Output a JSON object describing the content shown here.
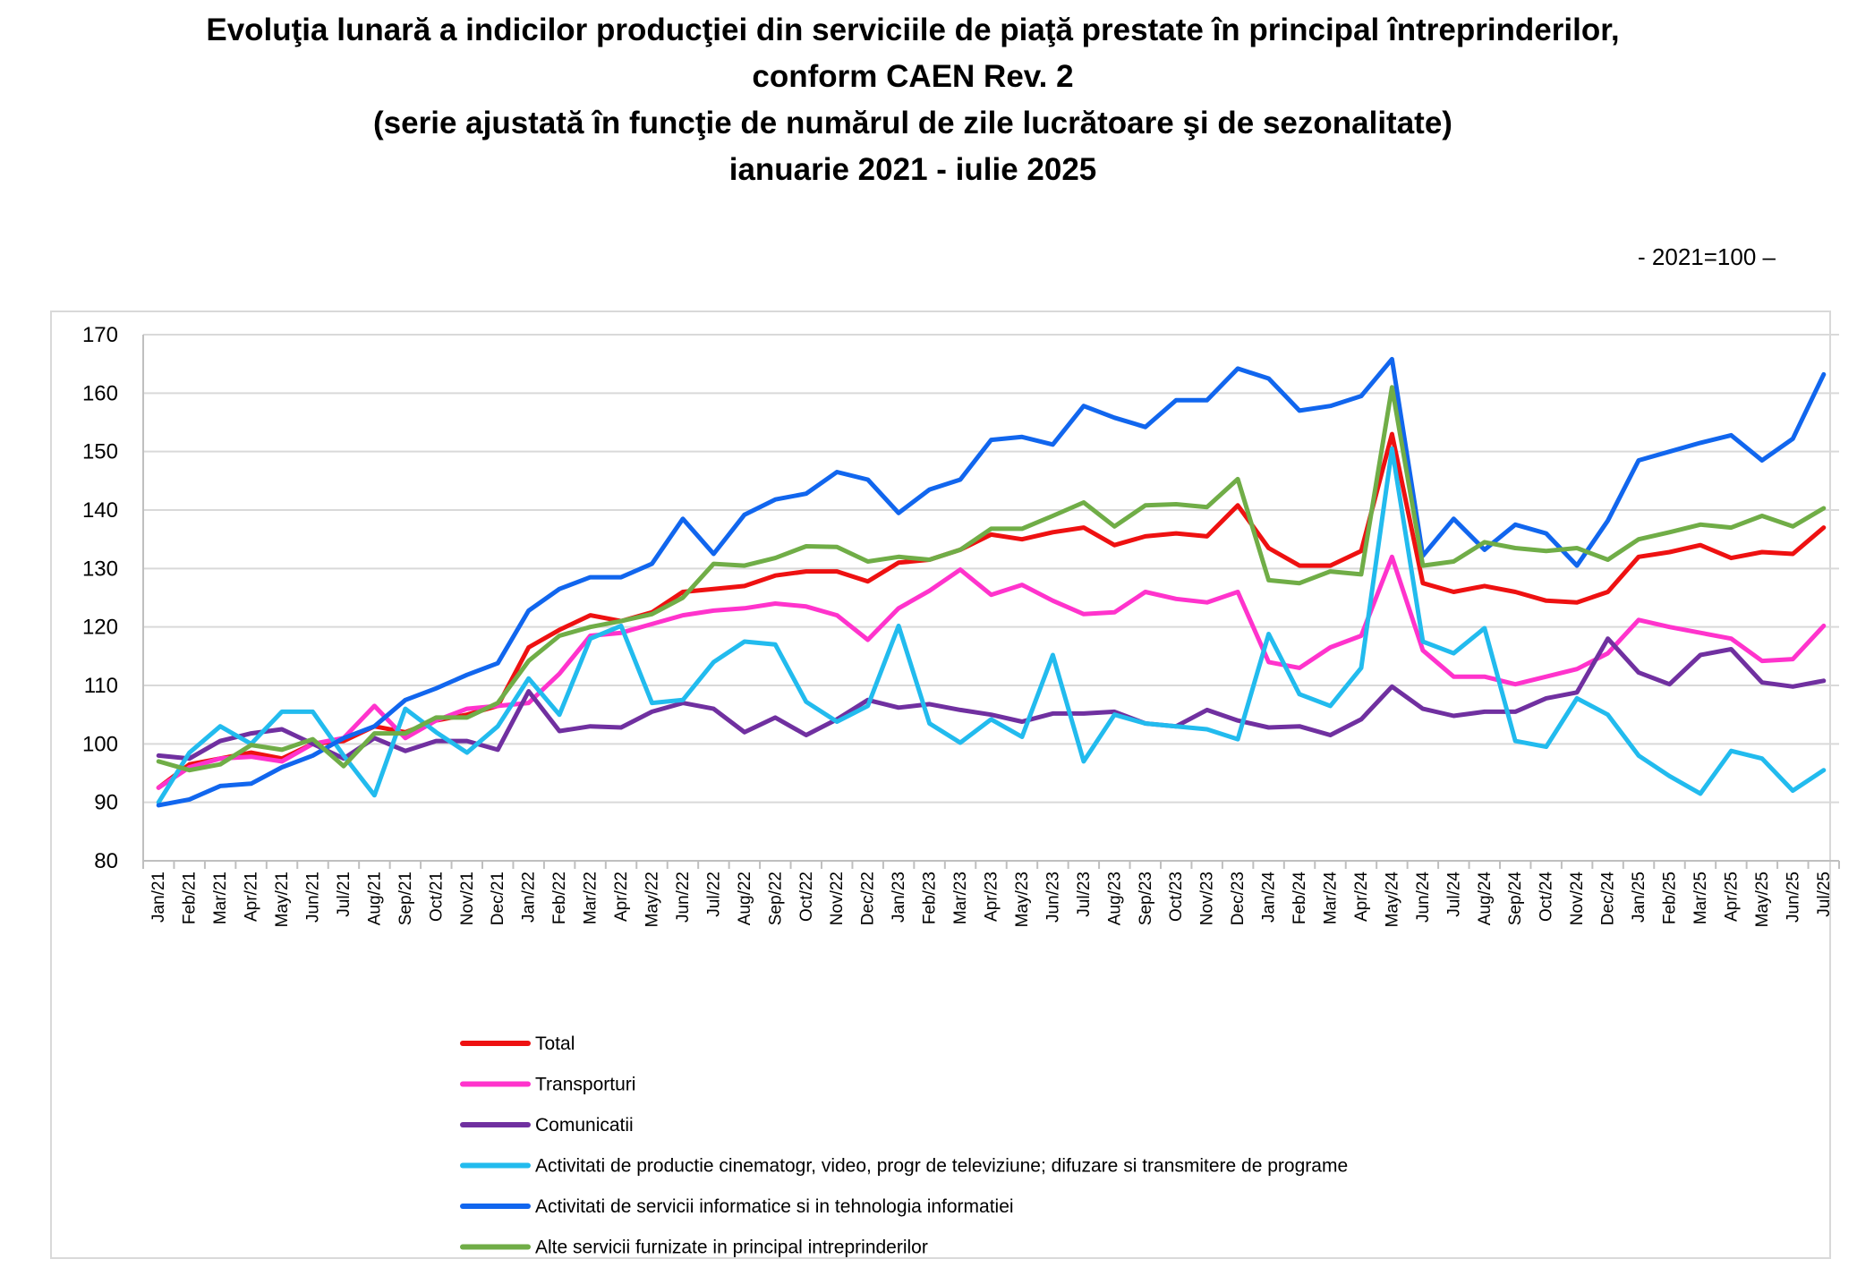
{
  "title_lines": [
    "Evoluţia lunară a indicilor producţiei din serviciile de piaţă prestate în principal întreprinderilor,",
    "conform CAEN Rev. 2",
    "(serie ajustată în funcţie de numărul de zile lucrătoare şi de sezonalitate)",
    "ianuarie 2021 - iulie 2025"
  ],
  "base_note": "- 2021=100 –",
  "chart_data": {
    "type": "line",
    "ylim": [
      80,
      170
    ],
    "yticks": [
      80,
      90,
      100,
      110,
      120,
      130,
      140,
      150,
      160,
      170
    ],
    "grid": true,
    "legend_position": "bottom",
    "categories": [
      "Jan/21",
      "Feb/21",
      "Mar/21",
      "Apr/21",
      "May/21",
      "Jun/21",
      "Jul/21",
      "Aug/21",
      "Sep/21",
      "Oct/21",
      "Nov/21",
      "Dec/21",
      "Jan/22",
      "Feb/22",
      "Mar/22",
      "Apr/22",
      "May/22",
      "Jun/22",
      "Jul/22",
      "Aug/22",
      "Sep/22",
      "Oct/22",
      "Nov/22",
      "Dec/22",
      "Jan/23",
      "Feb/23",
      "Mar/23",
      "Apr/23",
      "May/23",
      "Jun/23",
      "Jul/23",
      "Aug/23",
      "Sep/23",
      "Oct/23",
      "Nov/23",
      "Dec/23",
      "Jan/24",
      "Feb/24",
      "Mar/24",
      "Apr/24",
      "May/24",
      "Jun/24",
      "Jul/24",
      "Aug/24",
      "Sep/24",
      "Oct/24",
      "Nov/24",
      "Dec/24",
      "Jan/25",
      "Feb/25",
      "Mar/25",
      "Apr/25",
      "May/25",
      "Jun/25",
      "Jul/25"
    ],
    "series": [
      {
        "name": "Total",
        "color": "#ee1111",
        "values": [
          92.5,
          96.5,
          97.5,
          98.5,
          97.5,
          100,
          100.5,
          103,
          102,
          104,
          105,
          106.5,
          116.5,
          119.5,
          122,
          121,
          122.5,
          126,
          126.5,
          127,
          128.8,
          129.5,
          129.5,
          127.8,
          131,
          131.5,
          133.2,
          135.8,
          135,
          136.2,
          137,
          134,
          135.5,
          136,
          135.5,
          140.8,
          133.5,
          130.5,
          130.5,
          133,
          153,
          127.5,
          126,
          127,
          126,
          124.5,
          124.2,
          126,
          132,
          132.8,
          134,
          131.8,
          132.8,
          132.5,
          137
        ]
      },
      {
        "name": "Transporturi",
        "color": "#ff33cc",
        "values": [
          92.5,
          96,
          97.5,
          97.8,
          97,
          100,
          101,
          106.5,
          101,
          104,
          106,
          106.5,
          107,
          112,
          118.5,
          119,
          120.5,
          122,
          122.8,
          123.2,
          124,
          123.5,
          122,
          117.8,
          123.2,
          126.2,
          129.8,
          125.5,
          127.2,
          124.5,
          122.2,
          122.5,
          126,
          124.8,
          124.2,
          126,
          114,
          113,
          116.5,
          118.5,
          132,
          116,
          111.5,
          111.5,
          110.2,
          111.5,
          112.8,
          115.5,
          121.2,
          120,
          119,
          118,
          114.2,
          114.5,
          120.2
        ]
      },
      {
        "name": "Comunicatii",
        "color": "#7030a0",
        "values": [
          98,
          97.5,
          100.5,
          101.8,
          102.5,
          100,
          97.5,
          101,
          98.8,
          100.5,
          100.5,
          99,
          109,
          102.2,
          103,
          102.8,
          105.5,
          107,
          106,
          102,
          104.5,
          101.5,
          104.2,
          107.5,
          106.2,
          106.8,
          105.8,
          105,
          103.8,
          105.2,
          105.2,
          105.5,
          103.5,
          103,
          105.8,
          104,
          102.8,
          103,
          101.5,
          104.2,
          109.8,
          106,
          104.8,
          105.5,
          105.5,
          107.8,
          108.8,
          118,
          112.2,
          110.2,
          115.2,
          116.2,
          110.5,
          109.8,
          110.8
        ]
      },
      {
        "name": "Activitati de productie cinematogr, video, progr de televiziune; difuzare si transmitere de programe",
        "color": "#22bbee",
        "values": [
          90,
          98.5,
          103,
          100,
          105.5,
          105.5,
          98,
          91.2,
          106,
          102,
          98.5,
          103,
          111.2,
          105,
          118,
          120.2,
          107,
          107.5,
          114,
          117.5,
          117,
          107.2,
          103.8,
          106.5,
          120.2,
          103.5,
          100.2,
          104.2,
          101.2,
          115.2,
          97,
          105,
          103.5,
          103,
          102.5,
          100.8,
          118.8,
          108.5,
          106.5,
          113,
          150.5,
          117.5,
          115.5,
          119.8,
          100.5,
          99.5,
          107.8,
          105,
          98,
          94.5,
          91.5,
          98.8,
          97.5,
          92,
          95.5
        ]
      },
      {
        "name": "Activitati de servicii informatice si in tehnologia informatiei",
        "color": "#1166ee",
        "values": [
          89.5,
          90.5,
          92.8,
          93.2,
          96,
          98,
          101,
          103,
          107.5,
          109.5,
          111.8,
          113.8,
          122.8,
          126.5,
          128.5,
          128.5,
          130.8,
          138.5,
          132.5,
          139.2,
          141.8,
          142.8,
          146.5,
          145.2,
          139.5,
          143.5,
          145.2,
          152,
          152.5,
          151.2,
          157.8,
          155.8,
          154.2,
          158.8,
          158.8,
          164.2,
          162.5,
          157,
          157.8,
          159.5,
          165.8,
          132.2,
          138.5,
          133.2,
          137.5,
          136,
          130.5,
          138.2,
          148.5,
          150,
          151.5,
          152.8,
          148.5,
          152.2,
          163.2
        ]
      },
      {
        "name": "Alte servicii furnizate in principal intreprinderilor",
        "color": "#70ad47",
        "values": [
          97,
          95.5,
          96.5,
          99.8,
          99,
          100.8,
          96.2,
          101.8,
          101.8,
          104.5,
          104.5,
          107,
          114.2,
          118.5,
          120,
          121,
          122.2,
          125,
          130.8,
          130.5,
          131.8,
          133.8,
          133.7,
          131.2,
          132,
          131.5,
          133.2,
          136.8,
          136.8,
          139,
          141.3,
          137.2,
          140.8,
          141,
          140.5,
          145.3,
          128,
          127.5,
          129.5,
          129,
          161,
          130.5,
          131.2,
          134.5,
          133.5,
          133,
          133.5,
          131.5,
          135,
          136.2,
          137.5,
          137,
          139,
          137.2,
          140.3
        ]
      }
    ]
  }
}
